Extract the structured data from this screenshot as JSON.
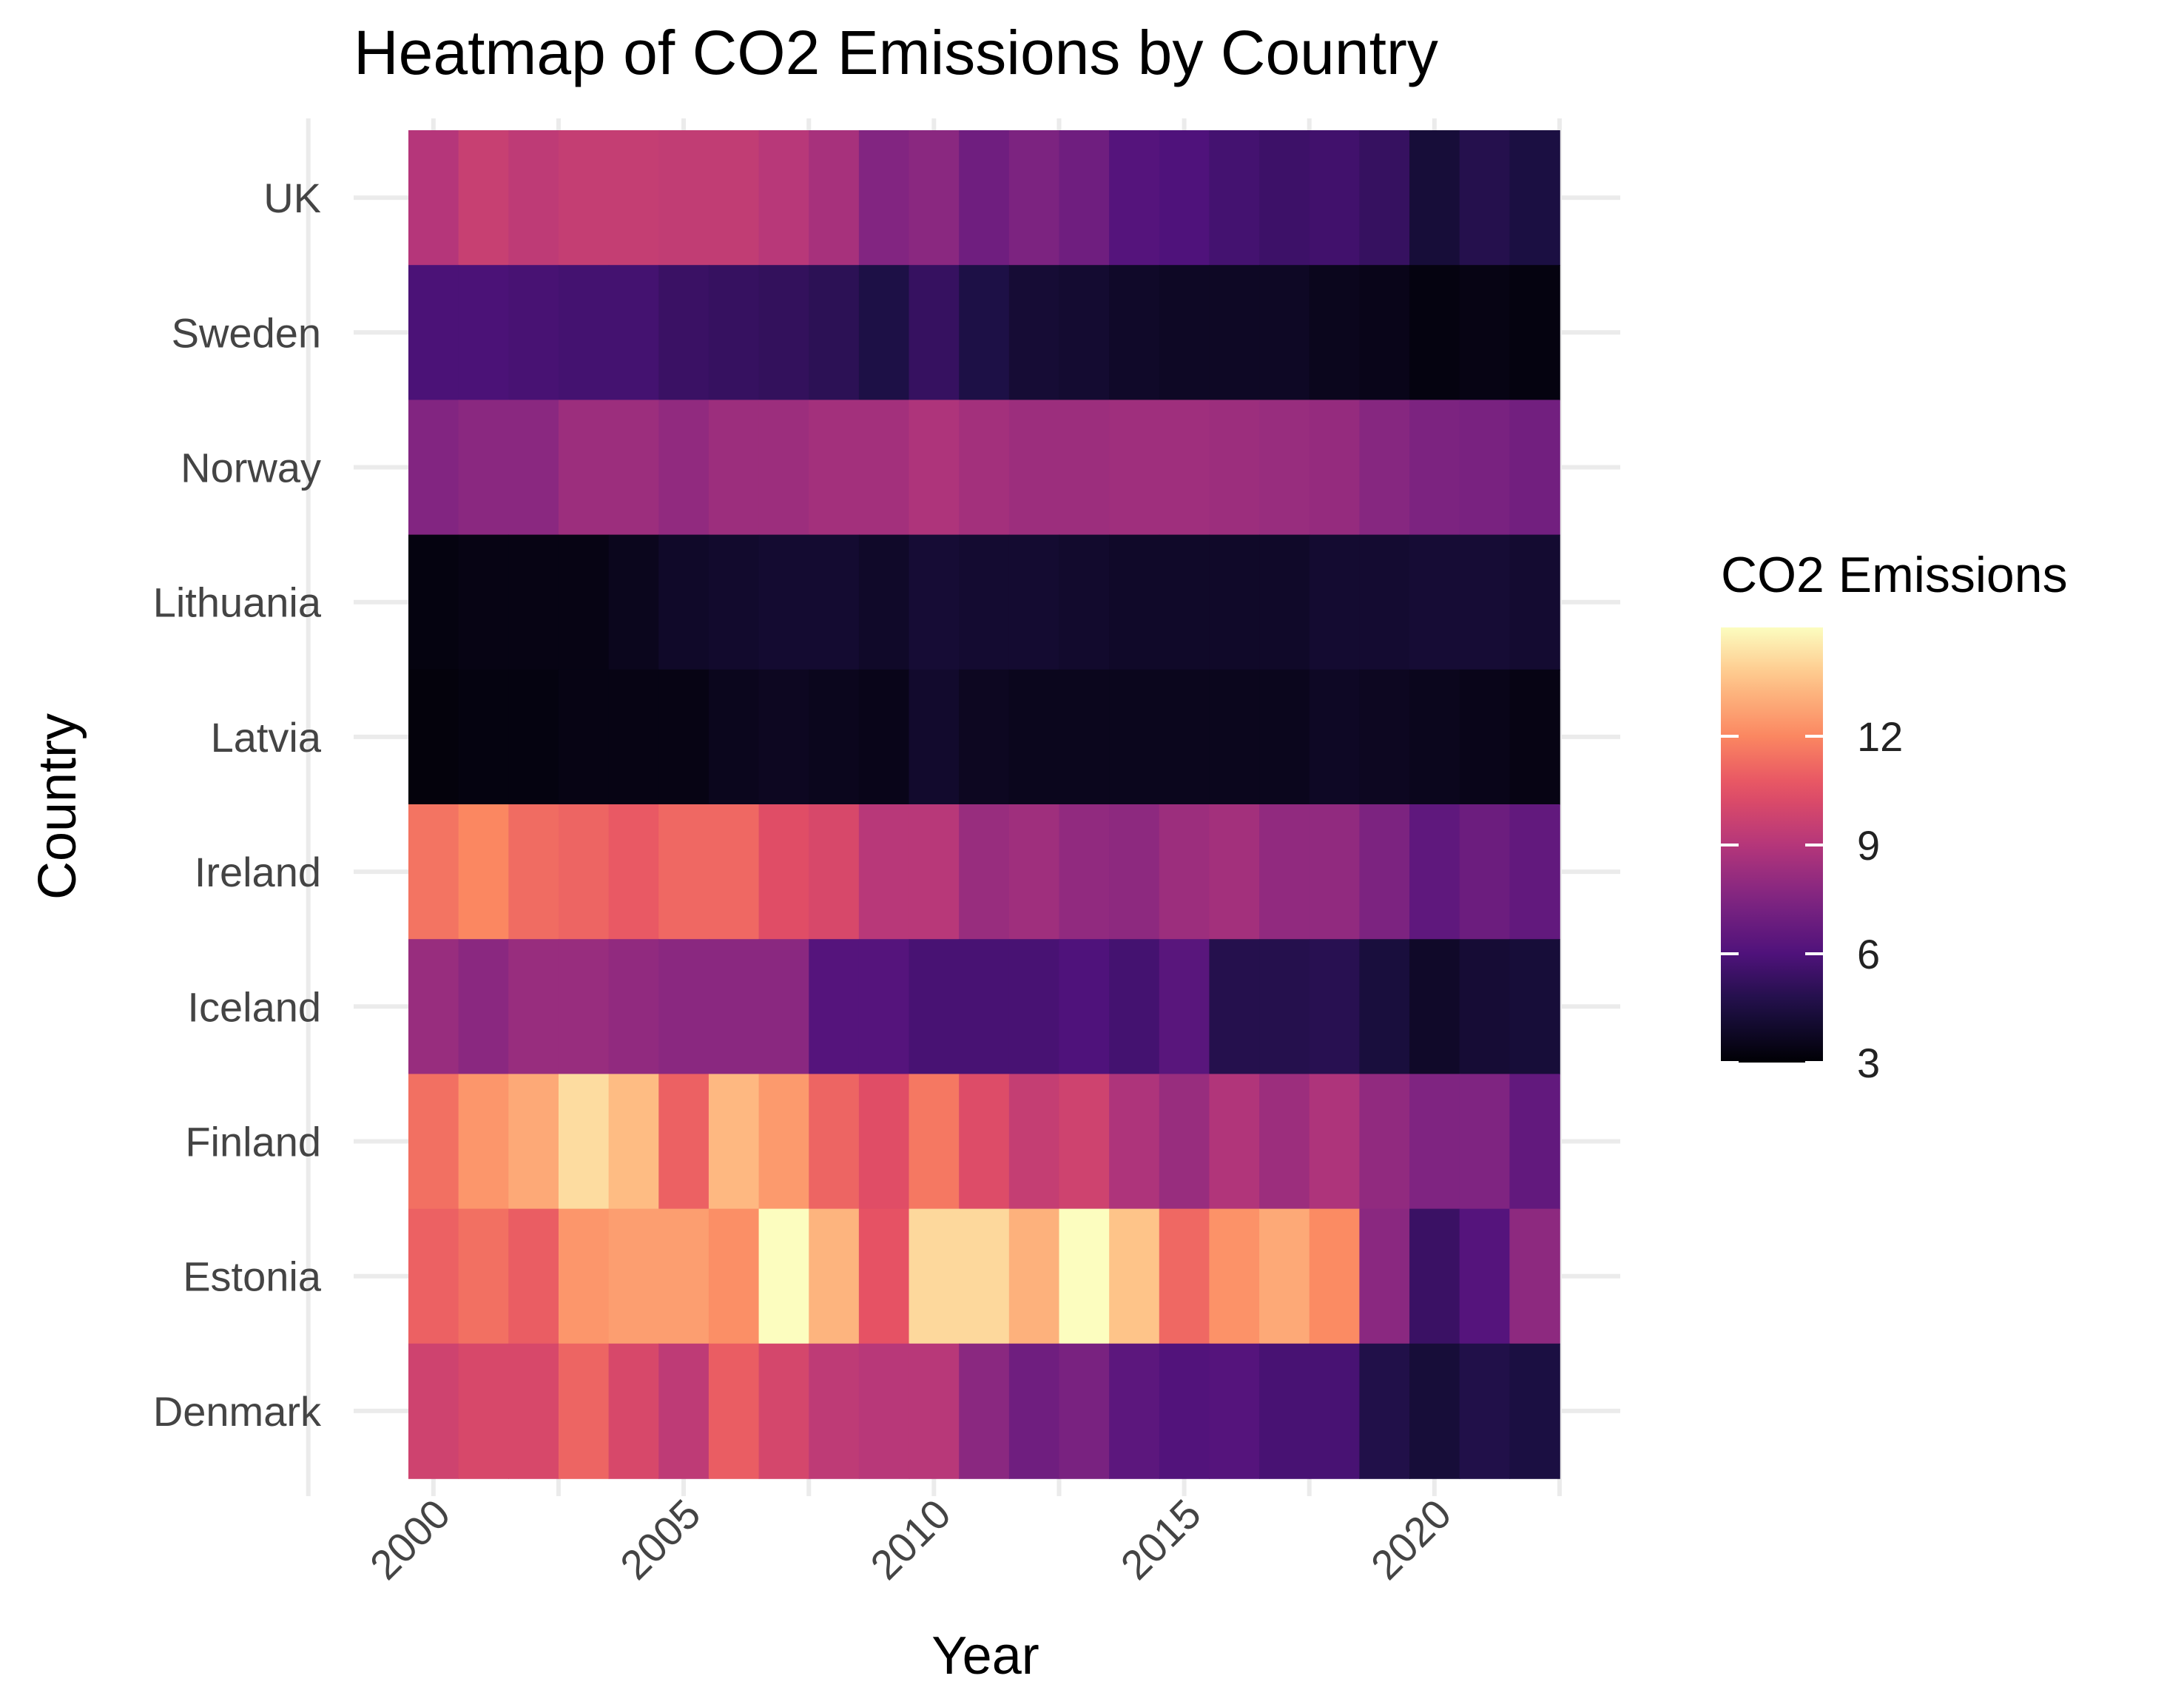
{
  "chart_data": {
    "type": "heatmap",
    "title": "Heatmap of CO2 Emissions by Country",
    "xlabel": "Year",
    "ylabel": "Country",
    "x": [
      2000,
      2001,
      2002,
      2003,
      2004,
      2005,
      2006,
      2007,
      2008,
      2009,
      2010,
      2011,
      2012,
      2013,
      2014,
      2015,
      2016,
      2017,
      2018,
      2019,
      2020,
      2021,
      2022
    ],
    "x_ticks": [
      "2000",
      "2005",
      "2010",
      "2015",
      "2020"
    ],
    "countries": [
      "UK",
      "Sweden",
      "Norway",
      "Lithuania",
      "Latvia",
      "Ireland",
      "Iceland",
      "Finland",
      "Estonia",
      "Denmark"
    ],
    "series": [
      {
        "name": "UK",
        "values": [
          9.0,
          9.6,
          9.3,
          9.5,
          9.5,
          9.4,
          9.4,
          9.1,
          8.6,
          7.6,
          7.8,
          7.0,
          7.4,
          7.0,
          6.2,
          6.0,
          5.7,
          5.5,
          5.6,
          5.3,
          4.3,
          4.8,
          4.5
        ]
      },
      {
        "name": "Sweden",
        "values": [
          5.9,
          5.9,
          5.8,
          5.7,
          5.7,
          5.4,
          5.3,
          5.2,
          5.0,
          4.6,
          5.3,
          4.6,
          4.2,
          4.1,
          3.9,
          3.8,
          3.8,
          3.8,
          3.6,
          3.5,
          3.3,
          3.4,
          3.3
        ]
      },
      {
        "name": "Norway",
        "values": [
          7.6,
          7.8,
          7.8,
          8.3,
          8.3,
          8.0,
          8.3,
          8.3,
          8.5,
          8.5,
          8.8,
          8.5,
          8.3,
          8.3,
          8.4,
          8.4,
          8.3,
          8.2,
          8.1,
          7.7,
          7.4,
          7.3,
          7.1
        ]
      },
      {
        "name": "Lithuania",
        "values": [
          3.3,
          3.4,
          3.4,
          3.4,
          3.6,
          3.9,
          4.0,
          4.1,
          4.1,
          3.9,
          4.2,
          4.1,
          4.1,
          4.0,
          3.9,
          3.9,
          3.9,
          3.9,
          4.1,
          4.1,
          4.2,
          4.2,
          4.1
        ]
      },
      {
        "name": "Latvia",
        "values": [
          3.2,
          3.3,
          3.3,
          3.4,
          3.4,
          3.4,
          3.6,
          3.7,
          3.6,
          3.5,
          4.0,
          3.7,
          3.6,
          3.6,
          3.6,
          3.6,
          3.6,
          3.6,
          3.8,
          3.7,
          3.6,
          3.5,
          3.4
        ]
      },
      {
        "name": "Ireland",
        "values": [
          11.5,
          12.0,
          11.3,
          11.1,
          10.8,
          11.2,
          11.2,
          10.4,
          10.1,
          9.1,
          9.1,
          8.2,
          8.4,
          8.0,
          7.9,
          8.3,
          8.5,
          8.0,
          8.0,
          7.4,
          6.5,
          6.9,
          6.6
        ]
      },
      {
        "name": "Iceland",
        "values": [
          8.2,
          7.8,
          8.2,
          8.2,
          8.0,
          7.8,
          7.8,
          7.8,
          6.2,
          6.2,
          5.8,
          5.8,
          5.8,
          6.0,
          5.7,
          6.3,
          4.8,
          4.8,
          4.9,
          4.4,
          3.9,
          4.2,
          4.3
        ]
      },
      {
        "name": "Finland",
        "values": [
          11.4,
          12.4,
          12.9,
          14.2,
          13.4,
          11.0,
          13.3,
          12.5,
          11.1,
          10.4,
          11.6,
          10.3,
          9.5,
          9.8,
          8.8,
          8.2,
          8.9,
          8.3,
          8.8,
          8.0,
          7.5,
          7.5,
          6.6
        ]
      },
      {
        "name": "Estonia",
        "values": [
          11.0,
          11.4,
          10.9,
          12.4,
          12.6,
          12.6,
          12.2,
          15.3,
          13.2,
          10.6,
          14.1,
          14.1,
          13.1,
          15.0,
          13.6,
          11.2,
          12.3,
          12.9,
          12.1,
          7.8,
          5.4,
          6.2,
          7.9
        ]
      },
      {
        "name": "Denmark",
        "values": [
          9.8,
          10.1,
          10.1,
          11.1,
          10.1,
          9.3,
          10.9,
          10.0,
          9.3,
          9.1,
          9.1,
          7.8,
          7.0,
          7.3,
          6.4,
          6.1,
          6.2,
          5.8,
          5.8,
          4.7,
          4.3,
          4.7,
          4.5
        ]
      }
    ],
    "colorscale": "magma",
    "legend": {
      "title": "CO2 Emissions",
      "placement": "right",
      "min": 3,
      "max": 15,
      "ticks": [
        3,
        6,
        9,
        12
      ]
    }
  }
}
